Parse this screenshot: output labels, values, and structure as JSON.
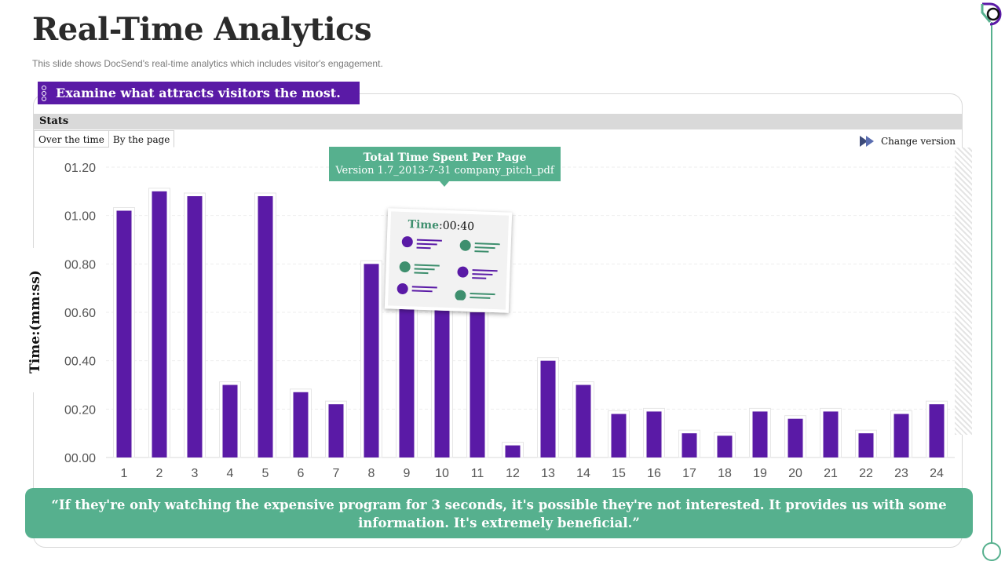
{
  "slide": {
    "title": "Real-Time Analytics",
    "subtitle": "This slide shows DocSend's real-time analytics which includes visitor's engagement.",
    "banner": "Examine what attracts visitors the most.",
    "quote": "“If they're only watching the expensive program for 3 seconds, it's possible they're not interested. It provides us with some information. It's extremely beneficial.”"
  },
  "panel": {
    "stats_label": "Stats",
    "tabs": [
      {
        "label": "Over the time"
      },
      {
        "label": "By the page"
      }
    ],
    "change_version_label": "Change version",
    "tooltip": {
      "title": "Total Time Spent Per Page",
      "subtitle": "Version 1.7_2013-7-31 company_pitch_pdf"
    },
    "time_card": {
      "label": "Time",
      "value": ":00:40"
    }
  },
  "colors": {
    "accent_purple": "#5a1aa6",
    "accent_green": "#56b08e",
    "bar": "#5a1aa6"
  },
  "chart_data": {
    "type": "bar",
    "ylabel": "Time:(mm:ss)",
    "xlabel": "",
    "categories": [
      "1",
      "2",
      "3",
      "4",
      "5",
      "6",
      "7",
      "8",
      "9",
      "10",
      "11",
      "12",
      "13",
      "14",
      "15",
      "16",
      "17",
      "18",
      "19",
      "20",
      "21",
      "22",
      "23",
      "24"
    ],
    "values": [
      1.02,
      1.1,
      1.08,
      0.3,
      1.08,
      0.27,
      0.22,
      0.8,
      0.64,
      0.62,
      0.6,
      0.05,
      0.4,
      0.3,
      0.18,
      0.19,
      0.1,
      0.09,
      0.19,
      0.16,
      0.19,
      0.1,
      0.18,
      0.22
    ],
    "ylim": [
      0,
      1.2
    ],
    "yticks": [
      0,
      0.2,
      0.4,
      0.6,
      0.8,
      1.0,
      1.2
    ],
    "ytick_labels": [
      "00.00",
      "00.20",
      "00.40",
      "00.60",
      "00.80",
      "01.00",
      "01.20"
    ],
    "grid": true,
    "legend": "none"
  }
}
